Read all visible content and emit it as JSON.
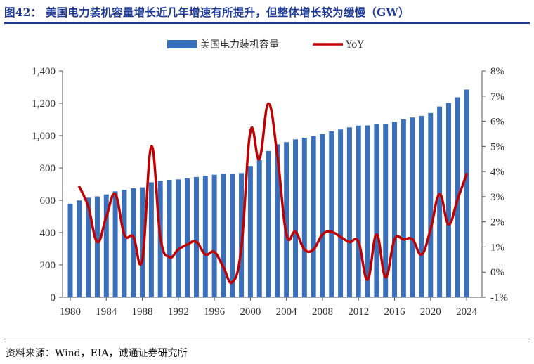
{
  "header": {
    "title": "图42：  美国电力装机容量增长近几年增速有所提升，但整体增长较为缓慢（GW）"
  },
  "footer": {
    "source": "资料来源：Wind，EIA，诚通证券研究所"
  },
  "colors": {
    "bar": "#3a6fba",
    "line": "#c00000",
    "title": "#1f3a93"
  },
  "chart_data": {
    "type": "bar+line",
    "title": "",
    "legend": {
      "placement": "top-center"
    },
    "x_axis": {
      "ticks": [
        "1980",
        "1984",
        "1988",
        "1992",
        "1996",
        "2000",
        "2004",
        "2008",
        "2012",
        "2016",
        "2020",
        "2024"
      ],
      "range": [
        1980,
        2024
      ]
    },
    "y_left": {
      "range": [
        0,
        1400
      ],
      "ticks": [
        "0",
        "200",
        "400",
        "600",
        "800",
        "1,000",
        "1,200",
        "1,400"
      ]
    },
    "y_right": {
      "range": [
        -1,
        8
      ],
      "unit": "%",
      "ticks": [
        "-1%",
        "0%",
        "1%",
        "2%",
        "3%",
        "4%",
        "5%",
        "6%",
        "7%",
        "8%"
      ]
    },
    "series": [
      {
        "name": "美国电力装机容量",
        "type": "bar",
        "axis": "left",
        "x": [
          1980,
          1981,
          1982,
          1983,
          1984,
          1985,
          1986,
          1987,
          1988,
          1989,
          1990,
          1991,
          1992,
          1993,
          1994,
          1995,
          1996,
          1997,
          1998,
          1999,
          2000,
          2001,
          2002,
          2003,
          2004,
          2005,
          2006,
          2007,
          2008,
          2009,
          2010,
          2011,
          2012,
          2013,
          2014,
          2015,
          2016,
          2017,
          2018,
          2019,
          2020,
          2021,
          2022,
          2023,
          2024
        ],
        "values": [
          579,
          599,
          616,
          624,
          636,
          655,
          665,
          674,
          680,
          711,
          721,
          726,
          729,
          735,
          744,
          752,
          758,
          763,
          762,
          768,
          812,
          850,
          905,
          946,
          960,
          977,
          987,
          996,
          1010,
          1026,
          1038,
          1051,
          1062,
          1063,
          1073,
          1073,
          1085,
          1100,
          1112,
          1122,
          1140,
          1180,
          1202,
          1237,
          1285
        ]
      },
      {
        "name": "YoY",
        "type": "line",
        "axis": "right",
        "x": [
          1981,
          1982,
          1983,
          1984,
          1985,
          1986,
          1987,
          1988,
          1989,
          1990,
          1991,
          1992,
          1993,
          1994,
          1995,
          1996,
          1997,
          1998,
          1999,
          2000,
          2001,
          2002,
          2003,
          2004,
          2005,
          2006,
          2007,
          2008,
          2009,
          2010,
          2011,
          2012,
          2013,
          2014,
          2015,
          2016,
          2017,
          2018,
          2019,
          2020,
          2021,
          2022,
          2023,
          2024
        ],
        "values": [
          3.4,
          2.6,
          1.2,
          2.2,
          3.1,
          1.5,
          1.4,
          0.5,
          5.0,
          1.4,
          0.6,
          0.9,
          1.1,
          1.2,
          0.7,
          0.8,
          0.2,
          -0.4,
          1.0,
          5.6,
          4.5,
          6.7,
          4.6,
          1.5,
          1.6,
          0.9,
          0.9,
          1.5,
          1.6,
          1.4,
          1.2,
          1.2,
          -0.3,
          1.5,
          -0.2,
          1.3,
          1.3,
          1.3,
          0.7,
          1.7,
          3.1,
          1.9,
          2.9,
          3.9
        ]
      }
    ]
  }
}
